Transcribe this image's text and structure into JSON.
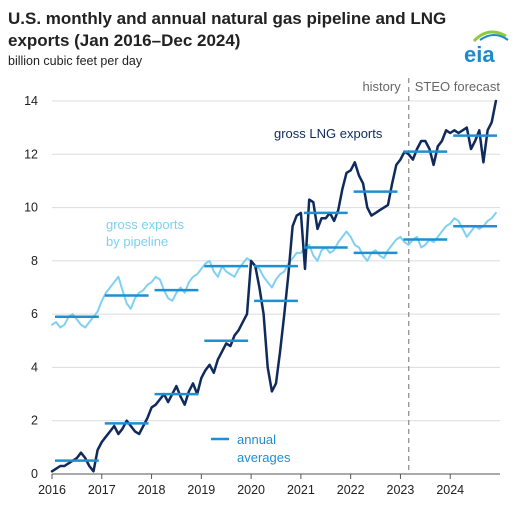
{
  "header": {
    "title": "U.S. monthly and annual natural gas pipeline and LNG exports (Jan 2016–Dec 2024)",
    "subtitle": "billion cubic feet per day",
    "logo_text": "eia"
  },
  "colors": {
    "lng": "#0f2a5c",
    "pipeline": "#7fd0f2",
    "averages": "#1e8fd0",
    "grid": "#dcdcdc",
    "divider": "#888888",
    "axis": "#555555",
    "logo_blue": "#1c8bcc",
    "logo_green": "#93c83e"
  },
  "chart_data": {
    "type": "line",
    "x_start": "2016-01",
    "x_frequency": "monthly",
    "xlim": [
      2016,
      2025
    ],
    "ylim": [
      0,
      14
    ],
    "xticks": [
      "2016",
      "2017",
      "2018",
      "2019",
      "2020",
      "2021",
      "2022",
      "2023",
      "2024"
    ],
    "yticks": [
      "0",
      "2",
      "4",
      "6",
      "8",
      "10",
      "12",
      "14"
    ],
    "grid": "horizontal",
    "history_end": "2023-03",
    "period_labels": {
      "history": "history",
      "forecast": "STEO forecast"
    },
    "series": [
      {
        "name": "gross LNG exports",
        "values": [
          0.1,
          0.2,
          0.3,
          0.3,
          0.4,
          0.5,
          0.6,
          0.8,
          0.6,
          0.3,
          0.1,
          0.9,
          1.2,
          1.4,
          1.6,
          1.8,
          1.5,
          1.7,
          2.0,
          1.8,
          1.6,
          1.5,
          1.8,
          2.1,
          2.5,
          2.6,
          2.8,
          3.0,
          2.7,
          3.0,
          3.3,
          2.9,
          2.6,
          3.1,
          3.4,
          3.0,
          3.6,
          3.9,
          4.1,
          3.8,
          4.3,
          4.6,
          4.9,
          4.8,
          5.2,
          5.4,
          5.7,
          6.0,
          8.0,
          7.8,
          7.0,
          6.0,
          4.0,
          3.1,
          3.4,
          4.6,
          6.0,
          7.5,
          9.3,
          9.7,
          9.8,
          7.7,
          10.3,
          10.2,
          9.2,
          9.6,
          9.6,
          9.8,
          9.5,
          9.9,
          10.7,
          11.3,
          11.4,
          11.7,
          11.2,
          10.9,
          10.0,
          9.7,
          9.8,
          9.9,
          10.0,
          10.1,
          10.9,
          11.6,
          11.8,
          12.1,
          12.0,
          11.8,
          12.2,
          12.5,
          12.5,
          12.2,
          11.6,
          12.3,
          12.5,
          12.9,
          12.8,
          12.9,
          12.8,
          12.9,
          13.0,
          12.2,
          12.5,
          12.9,
          11.7,
          12.9,
          13.2,
          14.0
        ]
      },
      {
        "name": "gross exports by pipeline",
        "values": [
          5.6,
          5.7,
          5.5,
          5.6,
          5.9,
          6.0,
          5.8,
          5.6,
          5.5,
          5.7,
          5.9,
          6.1,
          6.5,
          6.8,
          7.0,
          7.2,
          7.4,
          6.9,
          6.4,
          6.2,
          6.6,
          6.8,
          6.9,
          7.1,
          7.2,
          7.4,
          7.3,
          6.9,
          6.6,
          6.5,
          6.8,
          7.0,
          6.8,
          7.2,
          7.4,
          7.5,
          7.7,
          7.9,
          8.0,
          7.6,
          7.4,
          7.8,
          7.6,
          7.5,
          7.4,
          7.7,
          7.9,
          8.1,
          8.0,
          7.8,
          7.7,
          7.4,
          7.2,
          7.0,
          7.3,
          7.5,
          7.6,
          7.9,
          8.1,
          8.3,
          8.3,
          8.5,
          8.6,
          8.2,
          8.0,
          8.4,
          8.5,
          8.3,
          8.4,
          8.7,
          8.9,
          9.1,
          8.9,
          8.6,
          8.5,
          8.2,
          8.0,
          8.3,
          8.4,
          8.2,
          8.1,
          8.4,
          8.6,
          8.8,
          8.9,
          8.7,
          8.6,
          8.8,
          8.9,
          8.5,
          8.6,
          8.8,
          8.7,
          8.9,
          9.1,
          9.3,
          9.4,
          9.6,
          9.5,
          9.2,
          8.9,
          9.1,
          9.3,
          9.2,
          9.3,
          9.5,
          9.6,
          9.8
        ]
      },
      {
        "name": "annual averages",
        "lng": [
          0.5,
          1.9,
          3.0,
          5.0,
          6.5,
          9.8,
          10.6,
          12.1,
          12.7
        ],
        "pipeline": [
          5.9,
          6.7,
          6.9,
          7.8,
          7.8,
          8.5,
          8.3,
          8.8,
          9.3
        ]
      }
    ],
    "annotations": {
      "lng_label": "gross LNG exports",
      "pipeline_label_line1": "gross exports",
      "pipeline_label_line2": "by pipeline",
      "averages_label_line1": "annual",
      "averages_label_line2": "averages"
    }
  }
}
